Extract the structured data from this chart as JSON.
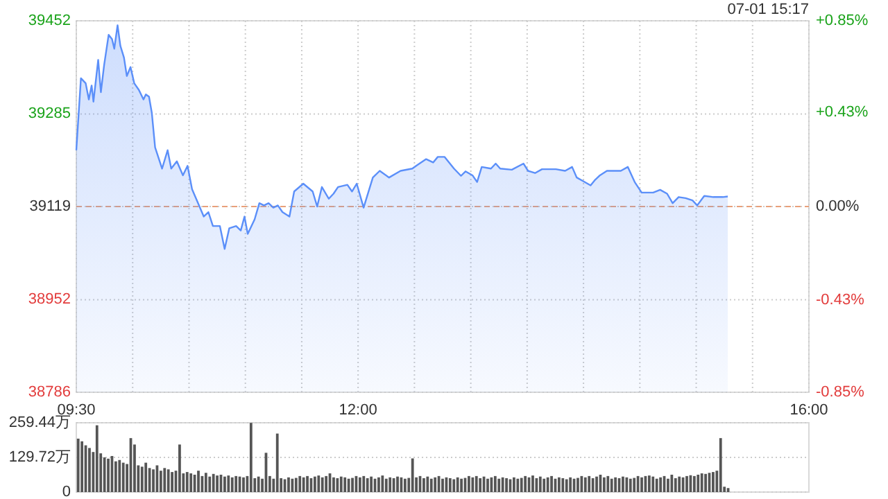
{
  "chart_data": [
    {
      "type": "area",
      "subtitle": "07-01 15:17",
      "color": "#5b8ff9",
      "x": [
        9.5,
        9.541,
        9.583,
        9.611,
        9.636,
        9.652,
        9.694,
        9.718,
        9.747,
        9.787,
        9.817,
        9.837,
        9.866,
        9.891,
        9.923,
        9.948,
        9.981,
        10.014,
        10.055,
        10.096,
        10.117,
        10.145,
        10.17,
        10.199,
        10.261,
        10.31,
        10.342,
        10.392,
        10.446,
        10.487,
        10.527,
        10.589,
        10.631,
        10.672,
        10.712,
        10.774,
        10.816,
        10.857,
        10.918,
        10.959,
        10.992,
        11.021,
        11.082,
        11.124,
        11.165,
        11.206,
        11.248,
        11.288,
        11.329,
        11.391,
        11.433,
        11.514,
        11.597,
        11.637,
        11.679,
        11.74,
        11.782,
        11.822,
        11.905,
        11.946,
        11.988,
        12.049,
        12.131,
        12.192,
        12.275,
        12.377,
        12.481,
        12.522,
        12.604,
        12.666,
        12.707,
        12.768,
        12.851,
        12.913,
        12.953,
        13.015,
        13.056,
        13.097,
        13.179,
        13.221,
        13.261,
        13.364,
        13.468,
        13.508,
        13.57,
        13.632,
        13.755,
        13.837,
        13.899,
        13.94,
        13.993,
        14.063,
        14.104,
        14.146,
        14.208,
        14.331,
        14.393,
        14.454,
        14.516,
        14.618,
        14.68,
        14.742,
        14.791,
        14.844,
        14.906,
        14.967,
        15.009,
        15.071,
        15.152,
        15.235,
        15.28
      ],
      "values": [
        39220,
        39349,
        39340,
        39311,
        39336,
        39307,
        39382,
        39324,
        39373,
        39427,
        39419,
        39402,
        39444,
        39407,
        39386,
        39353,
        39369,
        39340,
        39328,
        39311,
        39320,
        39316,
        39287,
        39225,
        39187,
        39220,
        39187,
        39200,
        39175,
        39192,
        39150,
        39121,
        39101,
        39109,
        39084,
        39084,
        39043,
        39080,
        39084,
        39076,
        39101,
        39070,
        39096,
        39125,
        39121,
        39125,
        39117,
        39121,
        39109,
        39101,
        39146,
        39160,
        39146,
        39119,
        39154,
        39133,
        39142,
        39154,
        39158,
        39146,
        39160,
        39117,
        39171,
        39183,
        39171,
        39183,
        39187,
        39193,
        39204,
        39198,
        39208,
        39208,
        39187,
        39174,
        39182,
        39175,
        39163,
        39190,
        39187,
        39196,
        39187,
        39185,
        39196,
        39183,
        39179,
        39186,
        39186,
        39183,
        39190,
        39171,
        39165,
        39157,
        39167,
        39175,
        39183,
        39183,
        39190,
        39163,
        39144,
        39144,
        39149,
        39142,
        39125,
        39136,
        39134,
        39130,
        39121,
        39138,
        39136,
        39136,
        39137
      ],
      "xlim": [
        9.5,
        16
      ],
      "xticks": [
        {
          "value": 9.5,
          "label": "09:30"
        },
        {
          "value": 10,
          "label": null
        },
        {
          "value": 10.5,
          "label": null
        },
        {
          "value": 11,
          "label": null
        },
        {
          "value": 11.5,
          "label": null
        },
        {
          "value": 12,
          "label": "12:00"
        },
        {
          "value": 12.5,
          "label": null
        },
        {
          "value": 13,
          "label": null
        },
        {
          "value": 13.5,
          "label": null
        },
        {
          "value": 14,
          "label": null
        },
        {
          "value": 14.5,
          "label": null
        },
        {
          "value": 15,
          "label": null
        },
        {
          "value": 15.5,
          "label": null
        },
        {
          "value": 16,
          "label": "16:00"
        }
      ],
      "ylim": [
        38786,
        39452
      ],
      "yticks": [
        38786,
        38952,
        39119,
        39285,
        39452
      ],
      "y2lim": [
        -0.85,
        0.85
      ],
      "y2ticks": [
        {
          "value": -0.85,
          "label": "-0.85%"
        },
        {
          "value": -0.43,
          "label": "-0.43%"
        },
        {
          "value": 0,
          "label": "0.00%"
        },
        {
          "value": 0.43,
          "label": "+0.43%"
        },
        {
          "value": 0.85,
          "label": "+0.85%"
        }
      ],
      "ref_lines": [
        {
          "axis": "y",
          "value": 39119,
          "color": "#e8a07a",
          "line_style": "dashed"
        }
      ],
      "grid": true
    },
    {
      "type": "bar",
      "color": "#555555",
      "tick_labels": "y",
      "grid": "y",
      "ylim": [
        0,
        259.44
      ],
      "yticks": [
        0,
        {
          "value": 129.72,
          "label": "129.72万"
        },
        {
          "value": 259.44,
          "label": "259.44万"
        }
      ],
      "categories": [
        null,
        null,
        null,
        null,
        null,
        null,
        null,
        null,
        null,
        null,
        null,
        null,
        null,
        null,
        null,
        null,
        null,
        null,
        null,
        null,
        null,
        null,
        null,
        null,
        null,
        null,
        null,
        null,
        null,
        null,
        null,
        null,
        null,
        null,
        null,
        null,
        null,
        null,
        null,
        null,
        null,
        null,
        null,
        null,
        null,
        null,
        null,
        null,
        null,
        null,
        null,
        null,
        null,
        null,
        null,
        null,
        null,
        null,
        null,
        null,
        null,
        null,
        null,
        null,
        null,
        null,
        null,
        null,
        null,
        null,
        null,
        null,
        null,
        null,
        null,
        null,
        null,
        null,
        null,
        null,
        null,
        null,
        null,
        null,
        null,
        null,
        null,
        null,
        null,
        null,
        null,
        null,
        null,
        null,
        null,
        null,
        null,
        null,
        null,
        null,
        null,
        null,
        null,
        null,
        null,
        null,
        null,
        null,
        null,
        null,
        null,
        null,
        null,
        null,
        null,
        null,
        null,
        null,
        null,
        null,
        null,
        null,
        null,
        null,
        null,
        null,
        null,
        null,
        null,
        null,
        null,
        null,
        null,
        null,
        null,
        null,
        null,
        null,
        null,
        null,
        null,
        null,
        null,
        null,
        null,
        null,
        null,
        null,
        null,
        null,
        null,
        null,
        null,
        null,
        null,
        null,
        null,
        null,
        null,
        null,
        null,
        null,
        null,
        null,
        null,
        null,
        null,
        null,
        null,
        null,
        null,
        null,
        null,
        null,
        null,
        null,
        null,
        null,
        null,
        null,
        null,
        null,
        null,
        null,
        null,
        null,
        null,
        null,
        null,
        null,
        null,
        null,
        null,
        null,
        null
      ],
      "values": [
        200,
        190,
        175,
        165,
        150,
        250,
        145,
        130,
        125,
        135,
        115,
        120,
        110,
        105,
        202,
        178,
        100,
        95,
        110,
        90,
        85,
        100,
        80,
        90,
        85,
        75,
        80,
        178,
        70,
        75,
        70,
        65,
        80,
        60,
        72,
        58,
        68,
        62,
        65,
        58,
        62,
        55,
        60,
        58,
        55,
        60,
        259,
        52,
        58,
        50,
        147,
        60,
        50,
        219,
        52,
        48,
        55,
        50,
        53,
        60,
        55,
        60,
        52,
        58,
        62,
        55,
        60,
        70,
        55,
        52,
        58,
        55,
        50,
        53,
        60,
        55,
        60,
        52,
        58,
        50,
        55,
        62,
        50,
        55,
        52,
        58,
        55,
        50,
        53,
        126,
        55,
        60,
        52,
        58,
        50,
        55,
        60,
        50,
        55,
        52,
        48,
        55,
        50,
        53,
        60,
        55,
        60,
        52,
        58,
        50,
        55,
        60,
        50,
        55,
        52,
        48,
        55,
        50,
        53,
        60,
        55,
        62,
        52,
        58,
        50,
        55,
        60,
        50,
        55,
        52,
        48,
        55,
        50,
        53,
        60,
        55,
        60,
        52,
        58,
        65,
        55,
        60,
        50,
        55,
        52,
        58,
        55,
        50,
        53,
        60,
        55,
        60,
        62,
        58,
        50,
        55,
        60,
        50,
        65,
        52,
        58,
        55,
        60,
        63,
        60,
        65,
        70,
        68,
        72,
        75,
        80,
        202,
        20,
        15,
        null,
        null,
        null,
        null,
        null,
        null,
        null,
        null,
        null,
        null,
        null,
        null,
        null,
        null,
        null,
        null,
        null,
        null,
        null,
        null,
        null
      ]
    }
  ]
}
